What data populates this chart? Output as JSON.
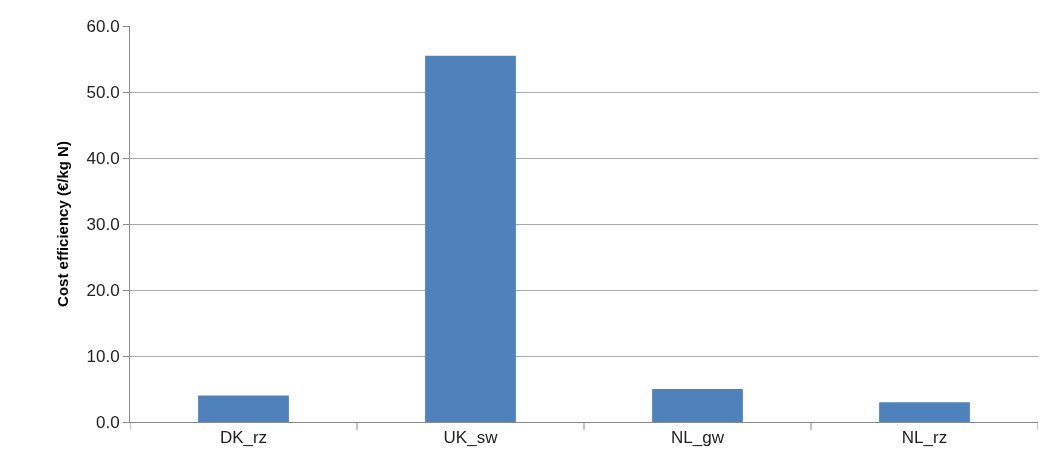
{
  "chart_data": {
    "type": "bar",
    "ylabel": "Cost efficiency (€/kg N)",
    "categories": [
      "DK_rz",
      "UK_sw",
      "NL_gw",
      "NL_rz"
    ],
    "values": [
      4.0,
      55.5,
      5.0,
      3.0
    ],
    "color": "#4f81bd",
    "ylim": [
      0,
      60
    ],
    "yticks": [
      {
        "value": 0,
        "label": "0.0"
      },
      {
        "value": 10,
        "label": "10.0"
      },
      {
        "value": 20,
        "label": "20.0"
      },
      {
        "value": 30,
        "label": "30.0"
      },
      {
        "value": 40,
        "label": "40.0"
      },
      {
        "value": 50,
        "label": "50.0"
      },
      {
        "value": 60,
        "label": "60.0"
      }
    ],
    "grid": "y"
  }
}
